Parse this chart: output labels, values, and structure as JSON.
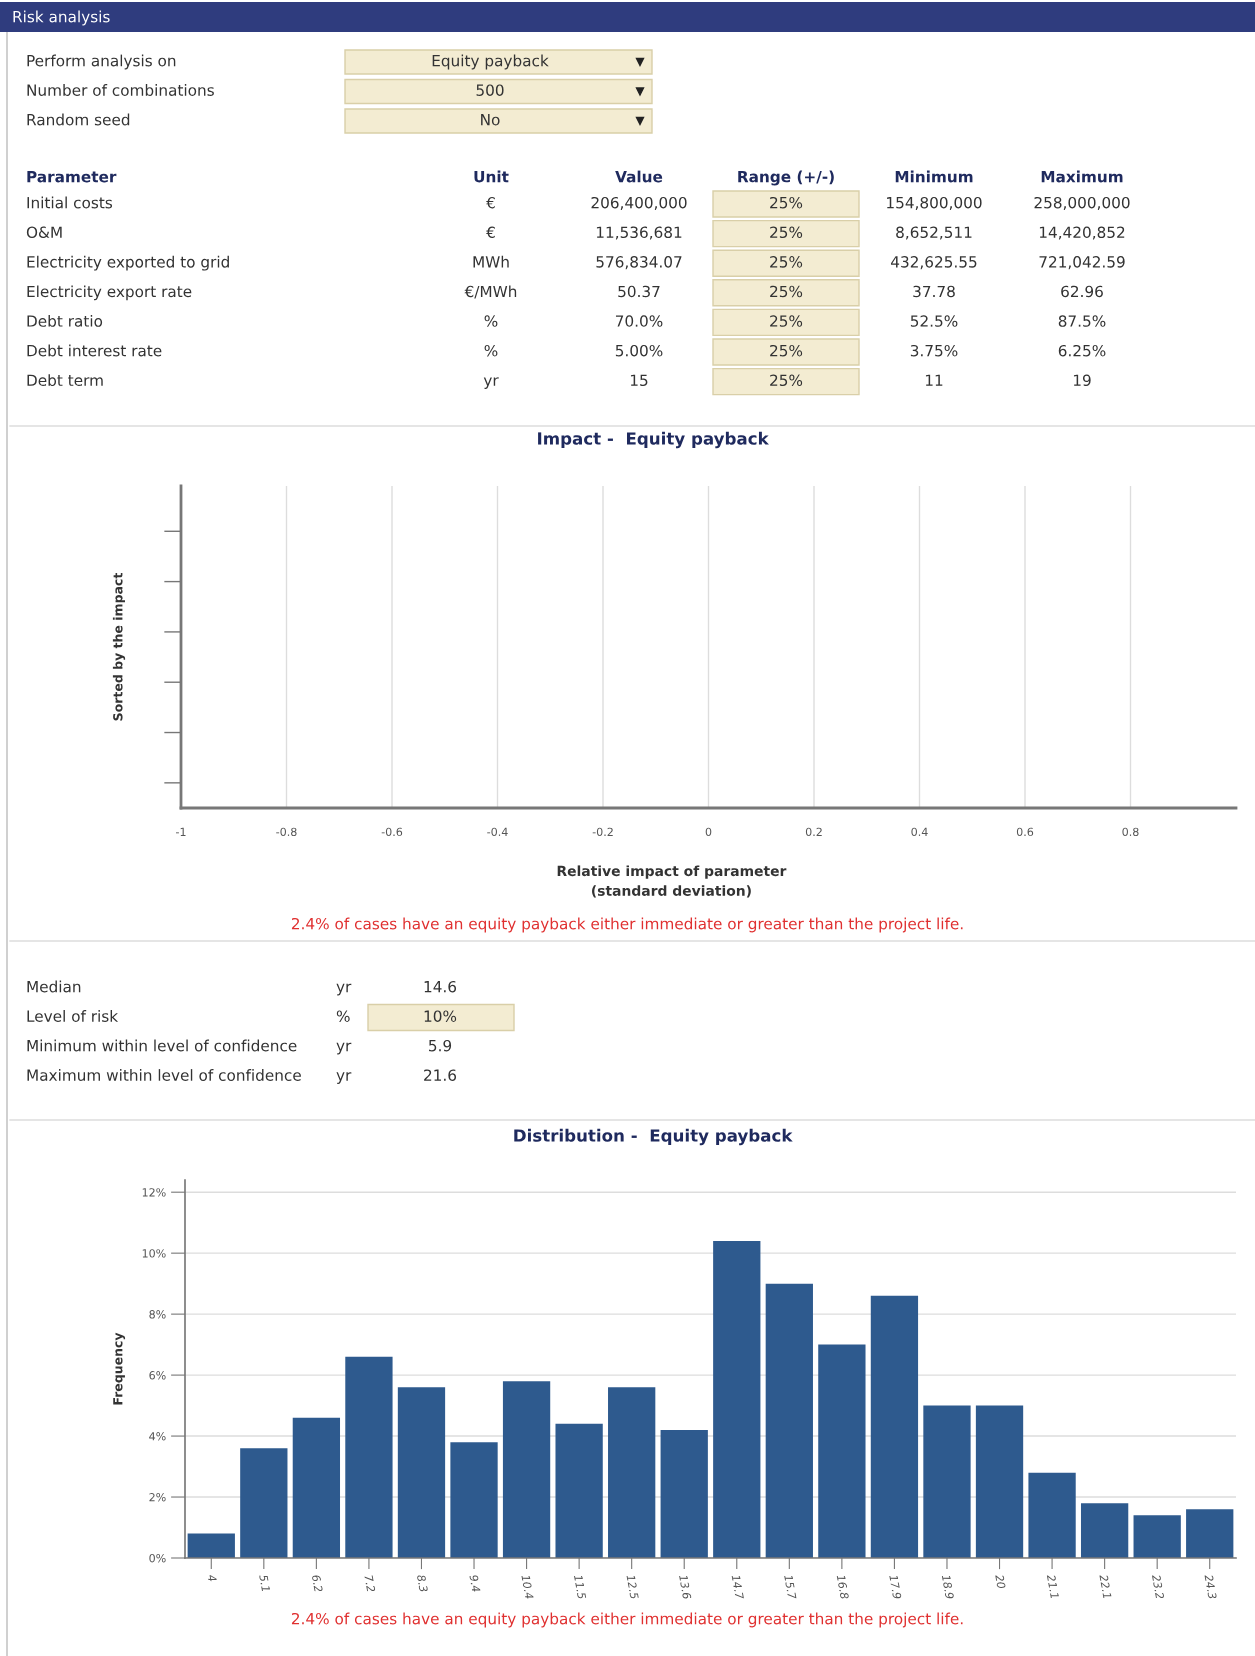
{
  "chart_data": [
    {
      "type": "other",
      "title": "Risk analysis",
      "y_categories": [
        "Perform analysis on",
        "Number of combinations",
        "Random seed"
      ],
      "cell_labels": [
        [
          "Equity payback"
        ],
        [
          "500"
        ],
        [
          "No"
        ]
      ]
    },
    {
      "type": "other",
      "categories": [
        "Parameter",
        "Unit",
        "Value",
        "Range (+/-)",
        "Minimum",
        "Maximum"
      ],
      "y_categories": [
        "Initial costs",
        "O&M",
        "Electricity exported to grid",
        "Electricity export rate",
        "Debt ratio",
        "Debt interest rate",
        "Debt term"
      ],
      "cell_labels": [
        [
          "€",
          "206,400,000",
          "25%",
          "154,800,000",
          "258,000,000"
        ],
        [
          "€",
          "11,536,681",
          "25%",
          "8,652,511",
          "14,420,852"
        ],
        [
          "MWh",
          "576,834.07",
          "25%",
          "432,625.55",
          "721,042.59"
        ],
        [
          "€/MWh",
          "50.37",
          "25%",
          "37.78",
          "62.96"
        ],
        [
          "%",
          "70.0%",
          "25%",
          "52.5%",
          "87.5%"
        ],
        [
          "%",
          "5.00%",
          "25%",
          "3.75%",
          "6.25%"
        ],
        [
          "yr",
          "15",
          "25%",
          "11",
          "19"
        ]
      ]
    },
    {
      "type": "bar",
      "orientation": "horizontal",
      "title": "Impact -  Equity payback",
      "xlabel": "Relative impact of parameter\n(standard deviation)",
      "ylabel": "Sorted by the impact",
      "categories": [
        null,
        null,
        null,
        null,
        null,
        null
      ],
      "values": [
        null,
        null,
        null,
        null,
        null,
        null
      ],
      "color": "#2e5a8e",
      "xlim": [
        -1,
        1
      ],
      "xticks": [
        -1,
        -0.8,
        -0.6,
        -0.4,
        -0.2,
        0,
        0.2,
        0.4,
        0.6,
        0.8
      ],
      "grid": "x",
      "annotations": [
        "2.4% of cases have an equity payback either immediate or greater than the project life."
      ]
    },
    {
      "type": "other",
      "y_categories": [
        "Median",
        "Level of risk",
        "Minimum within level of confidence",
        "Maximum within level of confidence"
      ],
      "cell_labels": [
        [
          "yr",
          "14.6"
        ],
        [
          "%",
          "10%"
        ],
        [
          "yr",
          "5.9"
        ],
        [
          "yr",
          "21.6"
        ]
      ]
    },
    {
      "type": "bar",
      "title": "Distribution -  Equity payback",
      "ylabel": "Frequency",
      "categories": [
        "4",
        "5.1",
        "6.2",
        "7.2",
        "8.3",
        "9.4",
        "10.4",
        "11.5",
        "12.5",
        "13.6",
        "14.7",
        "15.7",
        "16.8",
        "17.9",
        "18.9",
        "20",
        "21.1",
        "22.1",
        "23.2",
        "24.3"
      ],
      "values": [
        0.8,
        3.6,
        4.6,
        6.6,
        5.6,
        3.8,
        5.8,
        4.4,
        5.6,
        4.2,
        10.4,
        9.0,
        7.0,
        8.6,
        5.0,
        5.0,
        2.8,
        1.8,
        1.4,
        1.6
      ],
      "color": "#2e5a8e",
      "ylim": [
        0,
        12.4
      ],
      "yticks": [
        {
          "value": 0,
          "label": "0%"
        },
        {
          "value": 2,
          "label": "2%"
        },
        {
          "value": 4,
          "label": "4%"
        },
        {
          "value": 6,
          "label": "6%"
        },
        {
          "value": 8,
          "label": "8%"
        },
        {
          "value": 10,
          "label": "10%"
        },
        {
          "value": 12,
          "label": "12%"
        }
      ],
      "grid": "y",
      "annotations": [
        "2.4% of cases have an equity payback either immediate or greater than the project life."
      ]
    }
  ]
}
